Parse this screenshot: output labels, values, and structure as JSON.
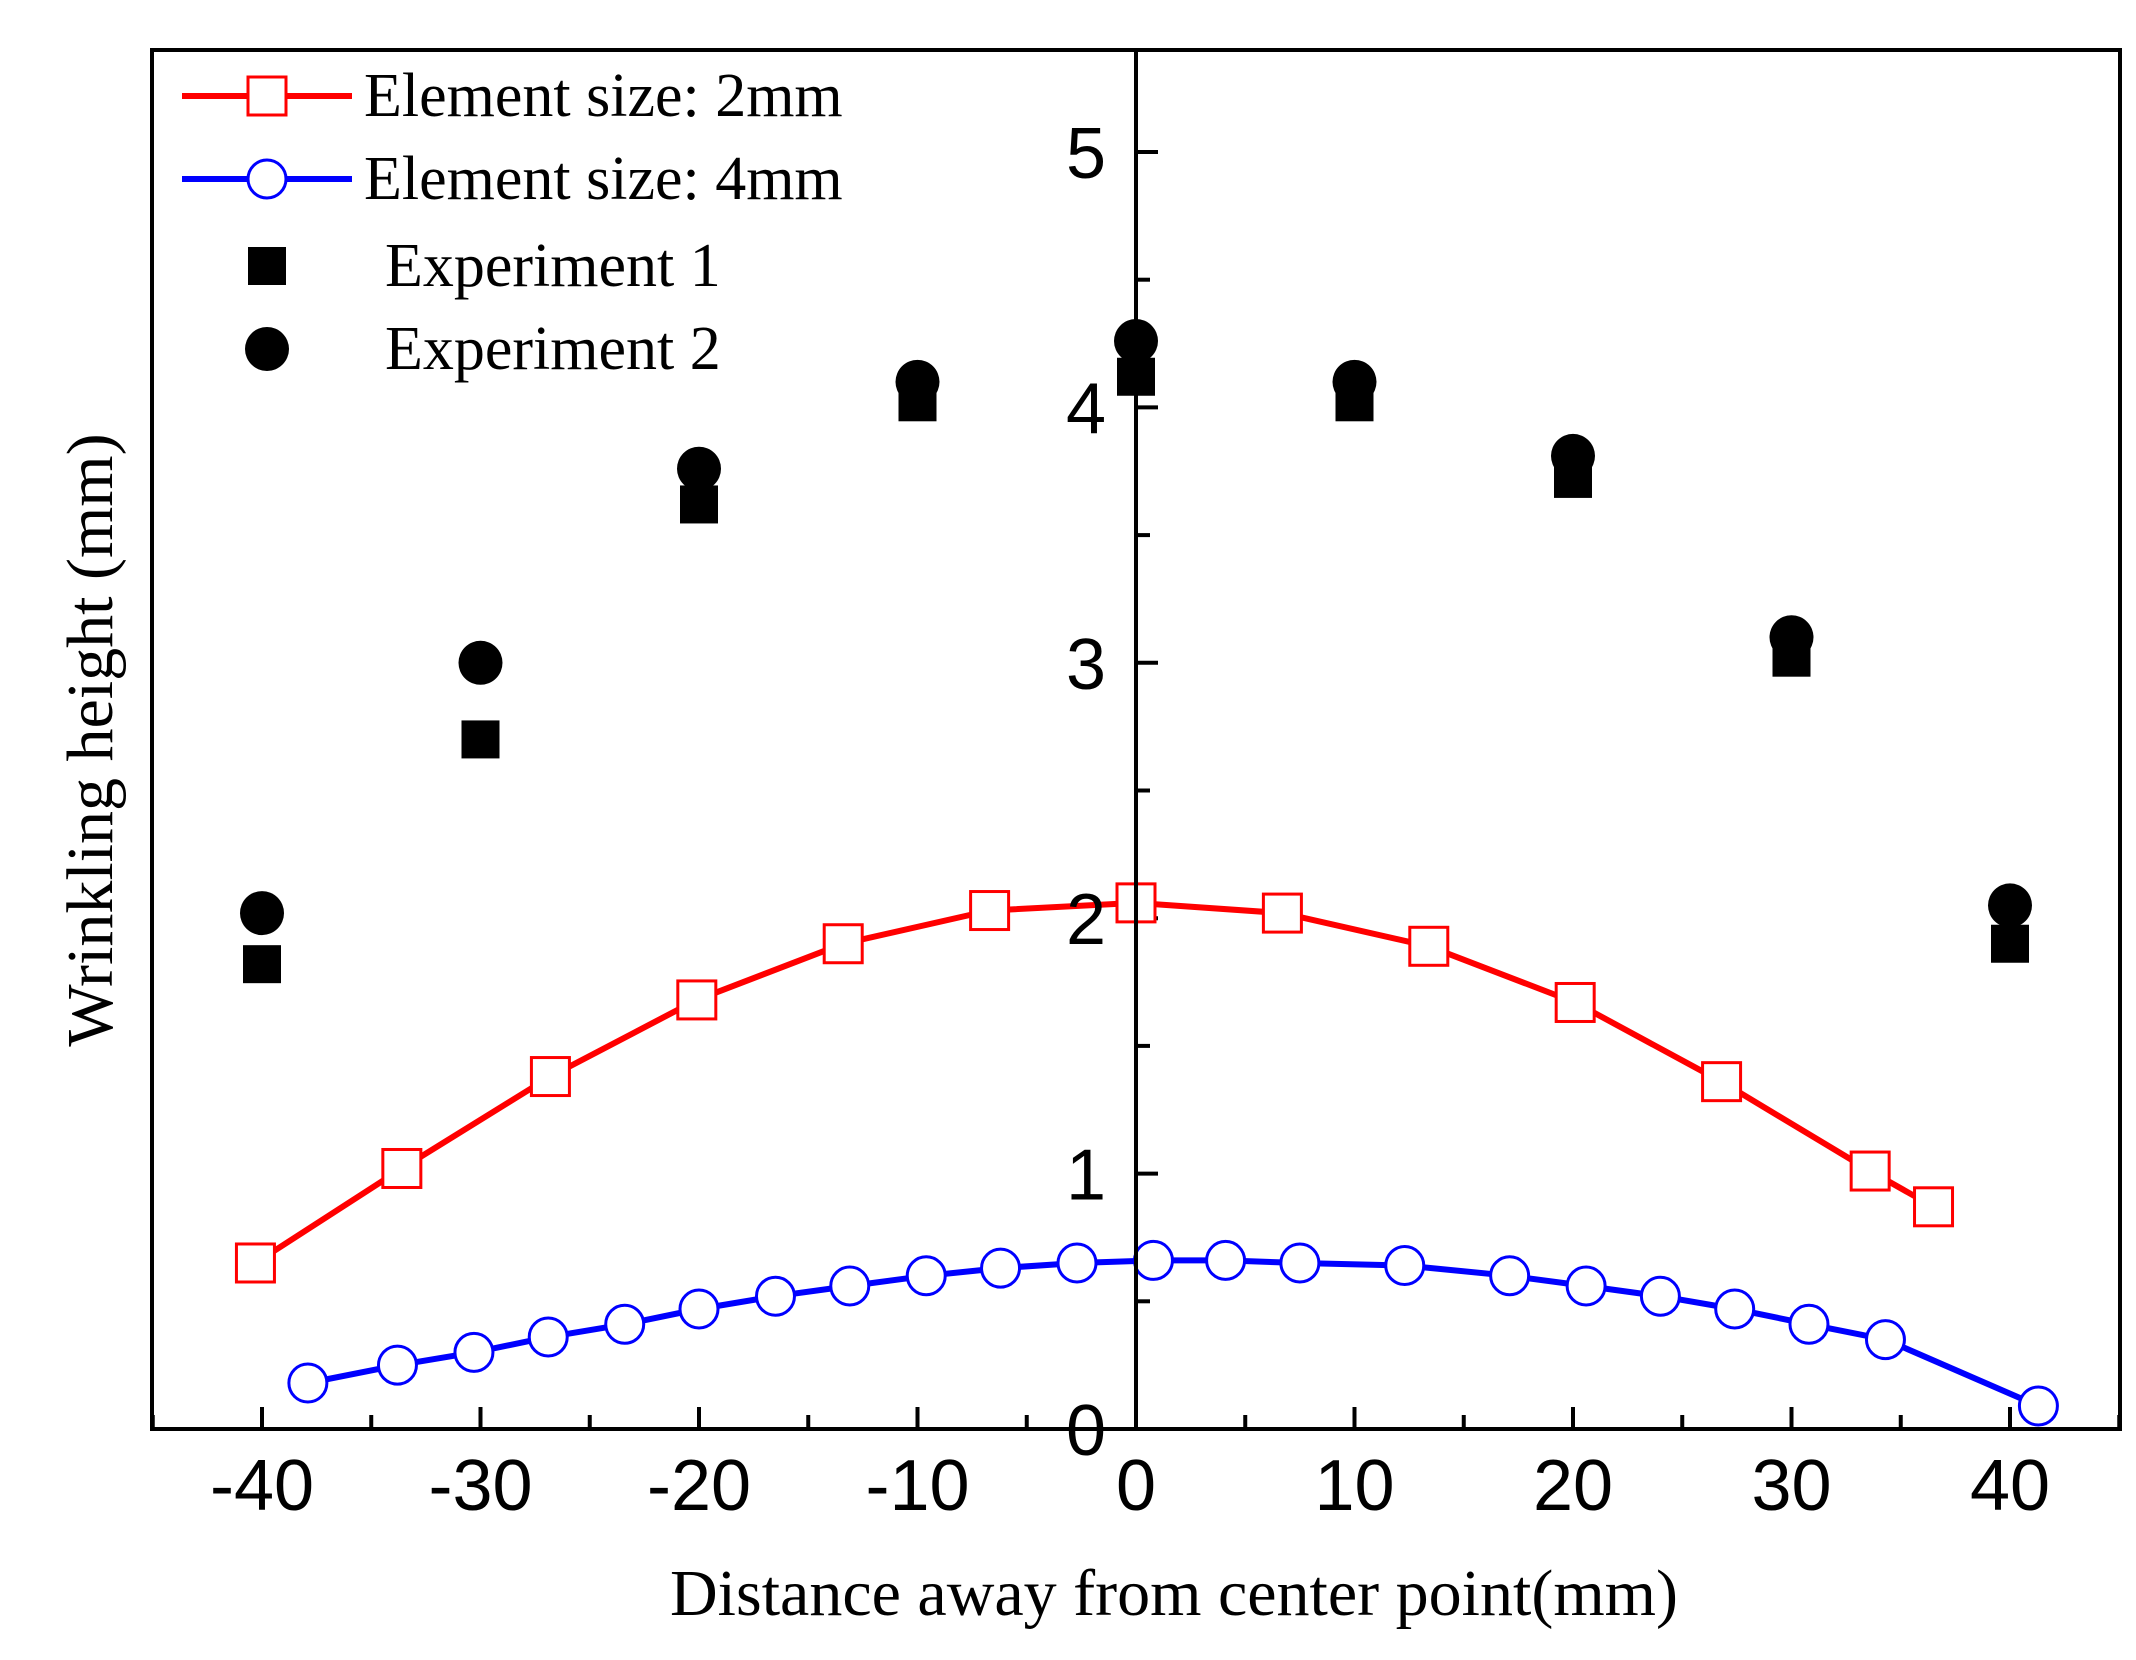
{
  "chart_data": {
    "type": "scatter",
    "title": "",
    "xlabel": "Distance away from center point(mm)",
    "ylabel": "Wrinkling height (mm)",
    "xlim": [
      -45,
      45
    ],
    "ylim": [
      0,
      5.4
    ],
    "x_ticks": [
      "-40",
      "-30",
      "-20",
      "-10",
      "0",
      "10",
      "20",
      "30",
      "40"
    ],
    "y_ticks": [
      "0",
      "1",
      "2",
      "3",
      "4",
      "5"
    ],
    "legend_position": "top-left",
    "series": [
      {
        "name": "Element size: 2mm",
        "kind": "line",
        "color": "#ff0000",
        "marker": "open-square",
        "x": [
          -40.3,
          -33.6,
          -26.8,
          -20.1,
          -13.4,
          -6.7,
          0,
          6.7,
          13.4,
          20.1,
          26.8,
          33.6,
          36.5
        ],
        "y": [
          0.65,
          1.02,
          1.38,
          1.68,
          1.9,
          2.03,
          2.06,
          2.02,
          1.89,
          1.67,
          1.36,
          1.01,
          0.87
        ]
      },
      {
        "name": "Element size: 4mm",
        "kind": "line",
        "color": "#0000ff",
        "marker": "open-circle",
        "x": [
          -37.9,
          -33.8,
          -30.3,
          -26.9,
          -23.4,
          -20.0,
          -16.5,
          -13.1,
          -9.6,
          -6.2,
          -2.7,
          0.8,
          4.1,
          7.5,
          12.3,
          17.1,
          20.6,
          24.0,
          27.4,
          30.8,
          34.3,
          41.3
        ],
        "y": [
          0.18,
          0.25,
          0.3,
          0.36,
          0.41,
          0.47,
          0.52,
          0.56,
          0.6,
          0.63,
          0.65,
          0.66,
          0.66,
          0.65,
          0.64,
          0.6,
          0.56,
          0.52,
          0.47,
          0.41,
          0.35,
          0.09
        ]
      },
      {
        "name": "Experiment 1",
        "kind": "scatter",
        "color": "#000000",
        "marker": "filled-square",
        "x": [
          -40,
          -30,
          -20,
          -10,
          0,
          10,
          20,
          30,
          40
        ],
        "y": [
          1.82,
          2.7,
          3.62,
          4.02,
          4.12,
          4.02,
          3.72,
          3.02,
          1.9
        ]
      },
      {
        "name": "Experiment 2",
        "kind": "scatter",
        "color": "#000000",
        "marker": "filled-circle",
        "x": [
          -40,
          -30,
          -20,
          -10,
          0,
          10,
          20,
          30,
          40
        ],
        "y": [
          2.02,
          3.0,
          3.76,
          4.1,
          4.26,
          4.1,
          3.81,
          3.1,
          2.05
        ]
      }
    ]
  }
}
